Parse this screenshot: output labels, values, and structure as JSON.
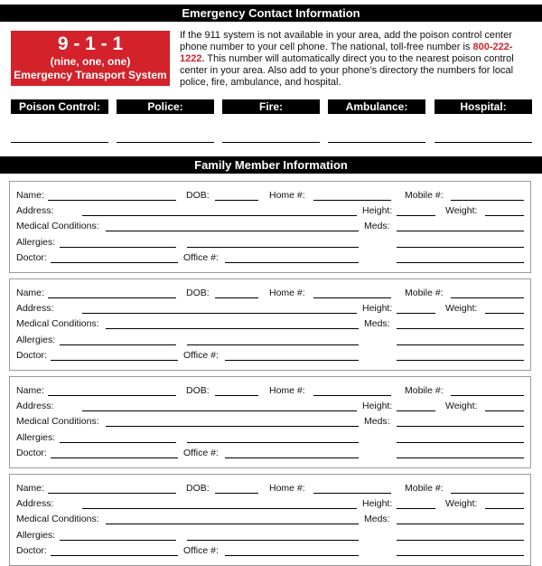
{
  "emergency": {
    "title": "Emergency Contact Information",
    "box": {
      "number": "9 - 1 - 1",
      "words": "(nine, one, one)",
      "system": "Emergency Transport System"
    },
    "intro_before": "If the 911 system is not available in your area, add the poison control center phone number to your cell phone. The national, toll-free number is ",
    "phone": "800-222-1222.",
    "intro_after": " This number will automatically direct you to the nearest poison control center in your area. Also add to your phone’s directory the numbers for local police, fire, ambulance, and hospital.",
    "contacts": [
      "Poison Control:",
      "Police:",
      "Fire:",
      "Ambulance:",
      "Hospital:"
    ]
  },
  "family": {
    "title": "Family Member Information",
    "labels": {
      "name": "Name:",
      "dob": "DOB:",
      "home": "Home #:",
      "mobile": "Mobile #:",
      "address": "Address:",
      "height": "Height:",
      "weight": "Weight:",
      "medical": "Medical Conditions:",
      "meds": "Meds:",
      "allergies": "Allergies:",
      "doctor": "Doctor:",
      "office": "Office #:"
    },
    "card_count": 4
  },
  "colors": {
    "accent": "#d3222a",
    "bar": "#000000",
    "card_border": "#999999"
  }
}
